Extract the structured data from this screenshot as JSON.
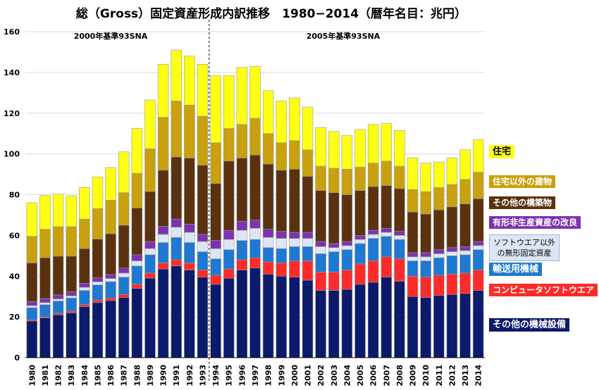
{
  "chart_data": {
    "type": "bar",
    "stacked": true,
    "title": "総（Gross）固定資産形成内訳推移　1980−2014（暦年名目：兆円）",
    "ylim": [
      0,
      160
    ],
    "yticks": [
      0,
      20,
      40,
      60,
      80,
      100,
      120,
      140,
      160
    ],
    "categories": [
      "1980",
      "1981",
      "1982",
      "1983",
      "1984",
      "1985",
      "1986",
      "1987",
      "1988",
      "1989",
      "1990",
      "1991",
      "1992",
      "1993",
      "1994",
      "1995",
      "1996",
      "1997",
      "1998",
      "1999",
      "2000",
      "2001",
      "2002",
      "2003",
      "2004",
      "2005",
      "2006",
      "2007",
      "2008",
      "2009",
      "2010",
      "2011",
      "2012",
      "2013",
      "2014"
    ],
    "annotations": [
      {
        "id": "left",
        "text": "2000年基準93SNA"
      },
      {
        "id": "right",
        "text": "2005年基準93SNA"
      }
    ],
    "divider_after": "1993",
    "series": [
      {
        "name": "その他の機械設備",
        "color": "#0c1a6b",
        "values": [
          18,
          19.5,
          21,
          22,
          25,
          27,
          28,
          29.5,
          34,
          39,
          43.5,
          45,
          43,
          39.5,
          36,
          39,
          43,
          44,
          41,
          40,
          39.5,
          38,
          33,
          33,
          33.5,
          36,
          37,
          39.5,
          37.5,
          30,
          29.5,
          30.5,
          31,
          31.5,
          33
        ]
      },
      {
        "name": "コンピュータソフトウエア",
        "color": "#ff2a2a",
        "values": [
          0.5,
          0.5,
          0.8,
          0.8,
          1,
          1.2,
          1.3,
          1.5,
          2,
          2.5,
          3,
          3,
          3.5,
          3.5,
          4.5,
          4.5,
          5,
          5,
          6,
          6.5,
          8,
          9.5,
          9,
          9,
          9.5,
          10,
          10.5,
          10,
          11,
          10,
          10,
          10,
          10,
          10,
          10
        ]
      },
      {
        "name": "輸送用機械",
        "color": "#1f78d1",
        "values": [
          6,
          6,
          6,
          6.5,
          7,
          7.5,
          8,
          8.5,
          9,
          9,
          10,
          11,
          10,
          9,
          8,
          9.5,
          9.5,
          9,
          7,
          7,
          7,
          7,
          9,
          10,
          10,
          10,
          11,
          10,
          9.5,
          7.5,
          8,
          8.5,
          9,
          9,
          10
        ]
      },
      {
        "name": "ソフトウエア以外の無形固定資産",
        "color": "#dde6f5",
        "values": [
          1,
          1,
          1,
          1,
          1.5,
          1.5,
          1.5,
          2,
          2.5,
          3,
          4,
          5,
          5,
          5,
          5,
          5,
          5,
          5.5,
          5,
          5,
          4,
          4,
          3.5,
          2,
          2,
          2,
          2,
          2,
          2,
          2,
          2,
          2,
          2,
          2,
          2
        ]
      },
      {
        "name": "有形非生産資産の改良",
        "color": "#7d33b0",
        "values": [
          2,
          2,
          2,
          2,
          2,
          2,
          2,
          2.5,
          3,
          3.5,
          4,
          4,
          4,
          3.5,
          4,
          4.5,
          4.5,
          4,
          4,
          3.5,
          3,
          3,
          2.5,
          2,
          2,
          2,
          2,
          2,
          2,
          2,
          2,
          2,
          2,
          2,
          2
        ]
      },
      {
        "name": "その他の構築物",
        "color": "#5a320f",
        "values": [
          19,
          20,
          19,
          17.5,
          17,
          19,
          20,
          21,
          23,
          24.5,
          27.5,
          30.5,
          32.5,
          34,
          28,
          34,
          31,
          32,
          32,
          30,
          31,
          27.5,
          25,
          25,
          23,
          22,
          21.5,
          21,
          21,
          20,
          19,
          19.5,
          20,
          21,
          21
        ]
      },
      {
        "name": "住宅以外の建物",
        "color": "#c9a00e",
        "values": [
          13,
          14,
          14.5,
          14.5,
          14.5,
          15,
          16.5,
          16,
          17,
          21,
          26,
          27.5,
          26,
          24,
          20,
          16,
          16.5,
          18,
          15,
          13.5,
          14,
          13,
          12,
          12,
          12.5,
          11.5,
          11.5,
          12,
          11,
          11,
          11,
          11,
          11,
          12,
          13
        ]
      },
      {
        "name": "住宅",
        "color": "#ffff14",
        "values": [
          16.5,
          16.5,
          16,
          15,
          15.5,
          15.5,
          16,
          20,
          22,
          24,
          26,
          25,
          24,
          25.5,
          33,
          26,
          28,
          25.5,
          21,
          20.5,
          21,
          21,
          19,
          18,
          16.5,
          18.5,
          19,
          18.5,
          17.5,
          15.5,
          14,
          12.5,
          13,
          14.5,
          16
        ]
      }
    ]
  }
}
